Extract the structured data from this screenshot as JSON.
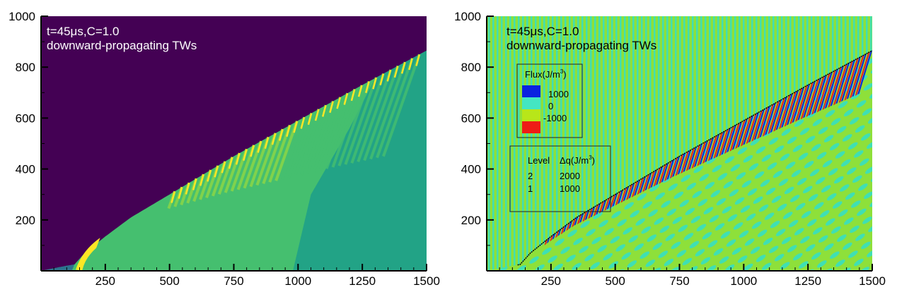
{
  "chart_data": [
    {
      "type": "heatmap",
      "panel": "left",
      "annotation_lines": [
        "t=45μs,C=1.0",
        "downward-propagating TWs"
      ],
      "xlim": [
        0,
        1500
      ],
      "ylim": [
        0,
        1000
      ],
      "x_ticks": [
        "250",
        "500",
        "750",
        "1000",
        "1250",
        "1500"
      ],
      "y_ticks": [
        "200",
        "400",
        "600",
        "800",
        "1000"
      ],
      "front": [
        [
          0,
          0
        ],
        [
          100,
          20
        ],
        [
          130,
          25
        ],
        [
          170,
          70
        ],
        [
          250,
          135
        ],
        [
          350,
          210
        ],
        [
          500,
          300
        ],
        [
          750,
          450
        ],
        [
          1000,
          590
        ],
        [
          1250,
          730
        ],
        [
          1500,
          865
        ]
      ],
      "colors": {
        "unburnt": "#440154",
        "burnt": "#45bf6f",
        "burnt_far": "#22a386",
        "peak": "#fde725",
        "stripe": "#8fd744"
      }
    },
    {
      "type": "heatmap",
      "panel": "right",
      "annotation_lines": [
        "t=45μs,C=1.0",
        "downward-propagating TWs"
      ],
      "xlim": [
        0,
        1500
      ],
      "ylim": [
        0,
        1000
      ],
      "x_ticks": [
        "250",
        "500",
        "750",
        "1000",
        "1250",
        "1500"
      ],
      "y_ticks": [
        "200",
        "400",
        "600",
        "800",
        "1000"
      ],
      "legend": {
        "title": "Flux(J/m",
        "title_sup": "3",
        "title_end": ")",
        "entries": [
          {
            "label": "1000",
            "color": "#0b22e0"
          },
          {
            "label": "0",
            "color": "#44e6c2"
          },
          {
            "label": "-1000",
            "color": "#b8e619"
          },
          {
            "label": "",
            "color": "#ee1c16"
          }
        ]
      },
      "level_table": {
        "header_level": "Level",
        "header_dq": "Δq(J/m",
        "header_sup": "3",
        "header_end": ")",
        "rows": [
          {
            "level": "2",
            "dq": "2000"
          },
          {
            "level": "1",
            "dq": "1000"
          }
        ]
      },
      "colors": {
        "background_a": "#8ee03a",
        "background_b": "#3fdfb4",
        "positive": "#0b22e0",
        "negative": "#ee1c16",
        "front_line": "#000000"
      }
    }
  ]
}
